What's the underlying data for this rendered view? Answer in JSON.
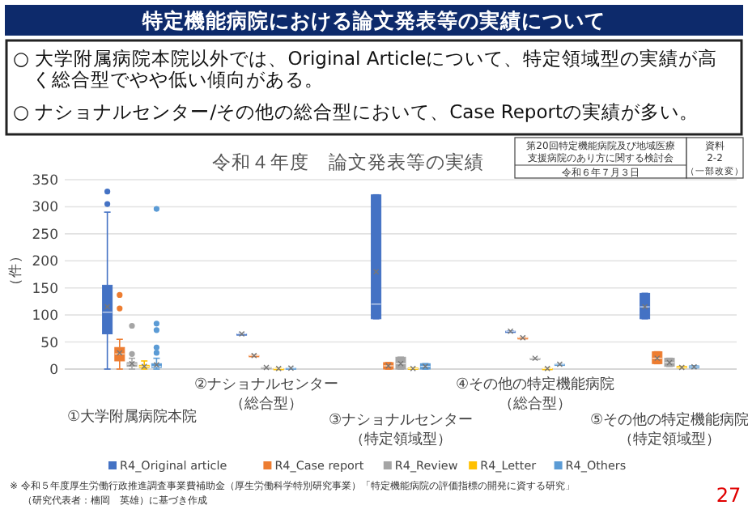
{
  "chart_data": {
    "type": "box",
    "title": "令和４年度　論文発表等の実績",
    "ylabel": "（件）",
    "annotations": [
      "特定機能病院における論文発表等の実績について",
      "○ 大学附属病院本院以外では、Original Articleについて、特定領域型の実績が高く総合型でやや低い傾向がある。",
      "○ ナショナルセンター/その他の総合型において、Case Reportの実績が多い。",
      "第20回特定機能病院及び地域医療支援病院のあり方に関する検討会",
      "令和６年７月３日",
      "資料 2-2 （一部改変）",
      "※ 令和５年度厚生労働行政推進調査事業費補助金（厚生労働科学特別研究事業）「特定機能病院の評価指標の開発に資する研究」",
      "（研究代表者：楠岡　英雄）に基づき作成",
      "27"
    ],
    "categories": [
      "①大学附属病院本院",
      "②ナショナルセンター（総合型）",
      "③ナショナルセンター（特定領域型）",
      "④その他の特定機能病院（総合型）",
      "⑤その他の特定機能病院（特定領域型）"
    ],
    "series": [
      {
        "name": "R4_Original article",
        "color": "#4472c4",
        "boxes": [
          {
            "low": 0,
            "q1": 65,
            "median": 105,
            "q3": 155,
            "high": 290,
            "mean": 115,
            "outliers": [
              305,
              328
            ]
          },
          {
            "low": 65,
            "q1": 65,
            "median": 65,
            "q3": 65,
            "high": 65,
            "mean": 65
          },
          {
            "low": 93,
            "q1": 93,
            "median": 120,
            "q3": 322,
            "high": 322,
            "mean": 180
          },
          {
            "low": 70,
            "q1": 70,
            "median": 70,
            "q3": 70,
            "high": 70,
            "mean": 70
          },
          {
            "low": 93,
            "q1": 93,
            "median": 115,
            "q3": 140,
            "high": 140,
            "mean": 115
          }
        ]
      },
      {
        "name": "R4_Case report",
        "color": "#ed7d31",
        "boxes": [
          {
            "low": 0,
            "q1": 15,
            "median": 28,
            "q3": 40,
            "high": 55,
            "mean": 30,
            "outliers": [
              112,
              137
            ]
          },
          {
            "low": 25,
            "q1": 25,
            "median": 25,
            "q3": 25,
            "high": 25,
            "mean": 25
          },
          {
            "low": 0,
            "q1": 0,
            "median": 6,
            "q3": 12,
            "high": 12,
            "mean": 6
          },
          {
            "low": 58,
            "q1": 58,
            "median": 58,
            "q3": 58,
            "high": 58,
            "mean": 58
          },
          {
            "low": 10,
            "q1": 10,
            "median": 20,
            "q3": 32,
            "high": 32,
            "mean": 20
          }
        ]
      },
      {
        "name": "R4_Review",
        "color": "#a5a5a5",
        "boxes": [
          {
            "low": 0,
            "q1": 5,
            "median": 9,
            "q3": 12,
            "high": 20,
            "mean": 10,
            "outliers": [
              28,
              80
            ]
          },
          {
            "low": 3,
            "q1": 3,
            "median": 3,
            "q3": 3,
            "high": 3,
            "mean": 3
          },
          {
            "low": 0,
            "q1": 0,
            "median": 10,
            "q3": 22,
            "high": 22,
            "mean": 10
          },
          {
            "low": 20,
            "q1": 20,
            "median": 20,
            "q3": 20,
            "high": 20,
            "mean": 20
          },
          {
            "low": 5,
            "q1": 5,
            "median": 12,
            "q3": 20,
            "high": 20,
            "mean": 12
          }
        ]
      },
      {
        "name": "R4_Letter",
        "color": "#ffc000",
        "boxes": [
          {
            "low": 0,
            "q1": 3,
            "median": 5,
            "q3": 7,
            "high": 15,
            "mean": 5
          },
          {
            "low": 1,
            "q1": 1,
            "median": 1,
            "q3": 1,
            "high": 1,
            "mean": 1
          },
          {
            "low": 0,
            "q1": 0,
            "median": 1,
            "q3": 2,
            "high": 2,
            "mean": 1
          },
          {
            "low": 1,
            "q1": 1,
            "median": 1,
            "q3": 1,
            "high": 1,
            "mean": 1
          },
          {
            "low": 2,
            "q1": 2,
            "median": 3,
            "q3": 5,
            "high": 5,
            "mean": 3
          }
        ]
      },
      {
        "name": "R4_Others",
        "color": "#5b9bd5",
        "boxes": [
          {
            "low": 0,
            "q1": 3,
            "median": 5,
            "q3": 10,
            "high": 20,
            "mean": 8,
            "outliers": [
              30,
              40,
              72,
              84,
              296
            ]
          },
          {
            "low": 2,
            "q1": 2,
            "median": 2,
            "q3": 2,
            "high": 2,
            "mean": 2
          },
          {
            "low": 0,
            "q1": 0,
            "median": 5,
            "q3": 10,
            "high": 10,
            "mean": 5
          },
          {
            "low": 9,
            "q1": 9,
            "median": 9,
            "q3": 9,
            "high": 9,
            "mean": 9
          },
          {
            "low": 2,
            "q1": 2,
            "median": 4,
            "q3": 6,
            "high": 6,
            "mean": 4
          }
        ]
      }
    ],
    "ylim": [
      0,
      350
    ],
    "yticks": [
      0,
      50,
      100,
      150,
      200,
      250,
      300,
      350
    ],
    "grid": "y",
    "legend": "bottom"
  }
}
